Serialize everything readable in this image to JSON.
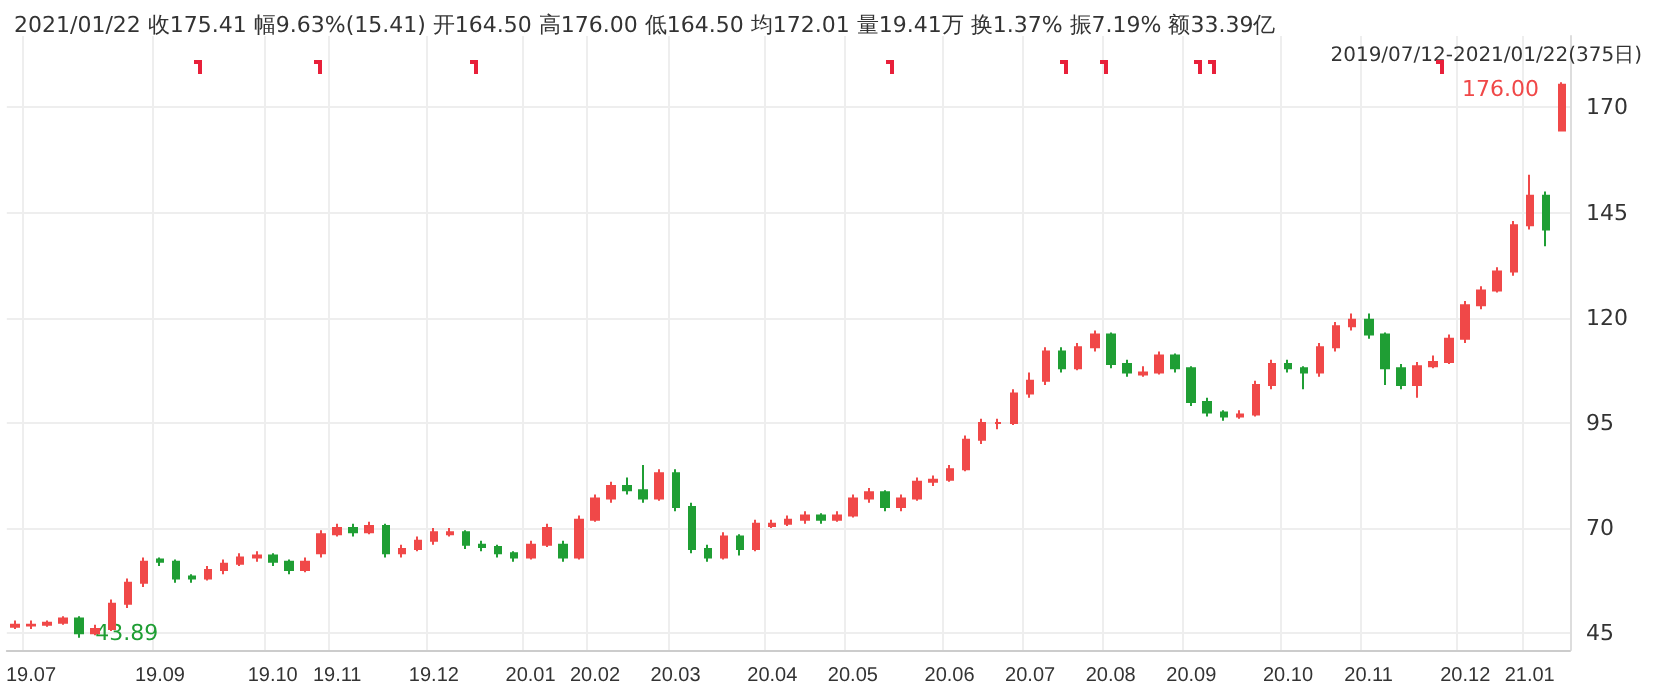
{
  "chart_data": {
    "type": "candlestick",
    "title": "2021/01/22 收175.41 幅9.63%(15.41) 开164.50 高176.00 低164.50 均172.01 量19.41万 换1.37% 振7.19% 额33.39亿",
    "subtitle": "2019/07/12-2021/01/22(375日)",
    "categories": [
      null,
      "19.07",
      null,
      null,
      null,
      null,
      null,
      null,
      null,
      "19.09",
      null,
      null,
      null,
      null,
      null,
      null,
      "19.10",
      null,
      null,
      null,
      "19.11",
      null,
      null,
      null,
      null,
      null,
      "19.12",
      null,
      null,
      null,
      null,
      null,
      "20.01",
      null,
      null,
      null,
      "20.02",
      null,
      null,
      null,
      null,
      "20.03",
      null,
      null,
      null,
      null,
      null,
      "20.04",
      null,
      null,
      null,
      null,
      "20.05",
      null,
      null,
      null,
      null,
      null,
      "20.06",
      null,
      null,
      null,
      null,
      "20.07",
      null,
      null,
      null,
      null,
      "20.08",
      null,
      null,
      null,
      null,
      "20.09",
      null,
      null,
      null,
      null,
      null,
      "20.10",
      null,
      null,
      null,
      null,
      "20.11",
      null,
      null,
      null,
      null,
      null,
      "20.12",
      null,
      null,
      null,
      "21.01",
      null,
      null
    ],
    "ohlc": [
      [
        46.5,
        48,
        46,
        47
      ],
      [
        46.8,
        48,
        46,
        47
      ],
      [
        47,
        48,
        46.5,
        47.5
      ],
      [
        47.5,
        49,
        47,
        48.5
      ],
      [
        48.5,
        49,
        43.89,
        45
      ],
      [
        45,
        47,
        44.5,
        46
      ],
      [
        46,
        53,
        45.5,
        52
      ],
      [
        52,
        58,
        51,
        57
      ],
      [
        57,
        63,
        56,
        62
      ],
      [
        62.5,
        63,
        61,
        62
      ],
      [
        62,
        62.5,
        57,
        58
      ],
      [
        58.5,
        59,
        57,
        58
      ],
      [
        58,
        61,
        57.5,
        60
      ],
      [
        60,
        62.5,
        59,
        61.5
      ],
      [
        61.5,
        64,
        61,
        63
      ],
      [
        63,
        64.5,
        62,
        63.5
      ],
      [
        63.5,
        64,
        61,
        62
      ],
      [
        62,
        62.5,
        59,
        60
      ],
      [
        60,
        63,
        59.5,
        62
      ],
      [
        64,
        69.5,
        63,
        68.5
      ],
      [
        68.5,
        71,
        68,
        70
      ],
      [
        70,
        71,
        68,
        69
      ],
      [
        69,
        71.5,
        68.5,
        70.5
      ],
      [
        70.5,
        71,
        63,
        64
      ],
      [
        64,
        66,
        63,
        65
      ],
      [
        65,
        68,
        64.5,
        67
      ],
      [
        67,
        70,
        66,
        69
      ],
      [
        68.5,
        70,
        68,
        69
      ],
      [
        69,
        69.5,
        65,
        66
      ],
      [
        66,
        67,
        64.5,
        65.5
      ],
      [
        65.5,
        66,
        63,
        64
      ],
      [
        64,
        64.5,
        62,
        63
      ],
      [
        63,
        67,
        62.5,
        66
      ],
      [
        66,
        71,
        65.5,
        70
      ],
      [
        66,
        67,
        62,
        63
      ],
      [
        63,
        73,
        62.5,
        72
      ],
      [
        72,
        78,
        71.5,
        77
      ],
      [
        77,
        81,
        76,
        80
      ],
      [
        80,
        82,
        78,
        79
      ],
      [
        79,
        85,
        76,
        77
      ],
      [
        77,
        84,
        76.5,
        83
      ],
      [
        83,
        84,
        74,
        75
      ],
      [
        75,
        76,
        64,
        65
      ],
      [
        65,
        66,
        62,
        63
      ],
      [
        63,
        69,
        62.5,
        68
      ],
      [
        68,
        68.5,
        63.5,
        65
      ],
      [
        65,
        72,
        64.5,
        71
      ],
      [
        70.5,
        72,
        70,
        71
      ],
      [
        71,
        73,
        70.5,
        72
      ],
      [
        72,
        74,
        71,
        73
      ],
      [
        73,
        73.5,
        71,
        72
      ],
      [
        72,
        74,
        71.5,
        73
      ],
      [
        73,
        78,
        72.5,
        77
      ],
      [
        77,
        79.5,
        76,
        78.5
      ],
      [
        78.5,
        79,
        74,
        75
      ],
      [
        75,
        78,
        74,
        77
      ],
      [
        77,
        82,
        76.5,
        81
      ],
      [
        81,
        82.5,
        80,
        81.5
      ],
      [
        81.5,
        85,
        81,
        84
      ],
      [
        84,
        92,
        83.5,
        91
      ],
      [
        91,
        96,
        90,
        95
      ],
      [
        95,
        96,
        93.5,
        95
      ],
      [
        95,
        103,
        94.5,
        102
      ],
      [
        102,
        107,
        101,
        105
      ],
      [
        105,
        113,
        104,
        112
      ],
      [
        112,
        113,
        107,
        108
      ],
      [
        108,
        114,
        107.5,
        113
      ],
      [
        113,
        117,
        112,
        116
      ],
      [
        116,
        116.5,
        108,
        109
      ],
      [
        109,
        110,
        106,
        107
      ],
      [
        106.5,
        108.5,
        106,
        107
      ],
      [
        107,
        112,
        106.5,
        111
      ],
      [
        111,
        111.5,
        107,
        108
      ],
      [
        108,
        108.5,
        99,
        100
      ],
      [
        100,
        101,
        96.5,
        97.5
      ],
      [
        97.5,
        98,
        95.5,
        96.5
      ],
      [
        96.5,
        98,
        96,
        97
      ],
      [
        97,
        105,
        96.5,
        104
      ],
      [
        104,
        110,
        103,
        109
      ],
      [
        109,
        110,
        107,
        108
      ],
      [
        108,
        108.5,
        103,
        107
      ],
      [
        107,
        114,
        106,
        113
      ],
      [
        113,
        119,
        112,
        118
      ],
      [
        118,
        121,
        117,
        119.5
      ],
      [
        119.5,
        121,
        115,
        116
      ],
      [
        116,
        116.5,
        104,
        108
      ],
      [
        108,
        109,
        103,
        104
      ],
      [
        104,
        109.5,
        101,
        108.5
      ],
      [
        108.5,
        111,
        108,
        109.5
      ],
      [
        109.5,
        116,
        109,
        115
      ],
      [
        115,
        124,
        114,
        123
      ],
      [
        123,
        127.5,
        122,
        126.5
      ],
      [
        126.5,
        132,
        126,
        131
      ],
      [
        131,
        143,
        130,
        142
      ],
      [
        142,
        154,
        141,
        149
      ],
      [
        149,
        150,
        137,
        141
      ],
      [
        164.5,
        176,
        164.5,
        175.41
      ]
    ],
    "ylim": [
      41,
      187
    ],
    "yticks": [
      45,
      70,
      95,
      120,
      145,
      170
    ],
    "grid": true,
    "annotations": [
      "176.00",
      "43.89"
    ]
  }
}
